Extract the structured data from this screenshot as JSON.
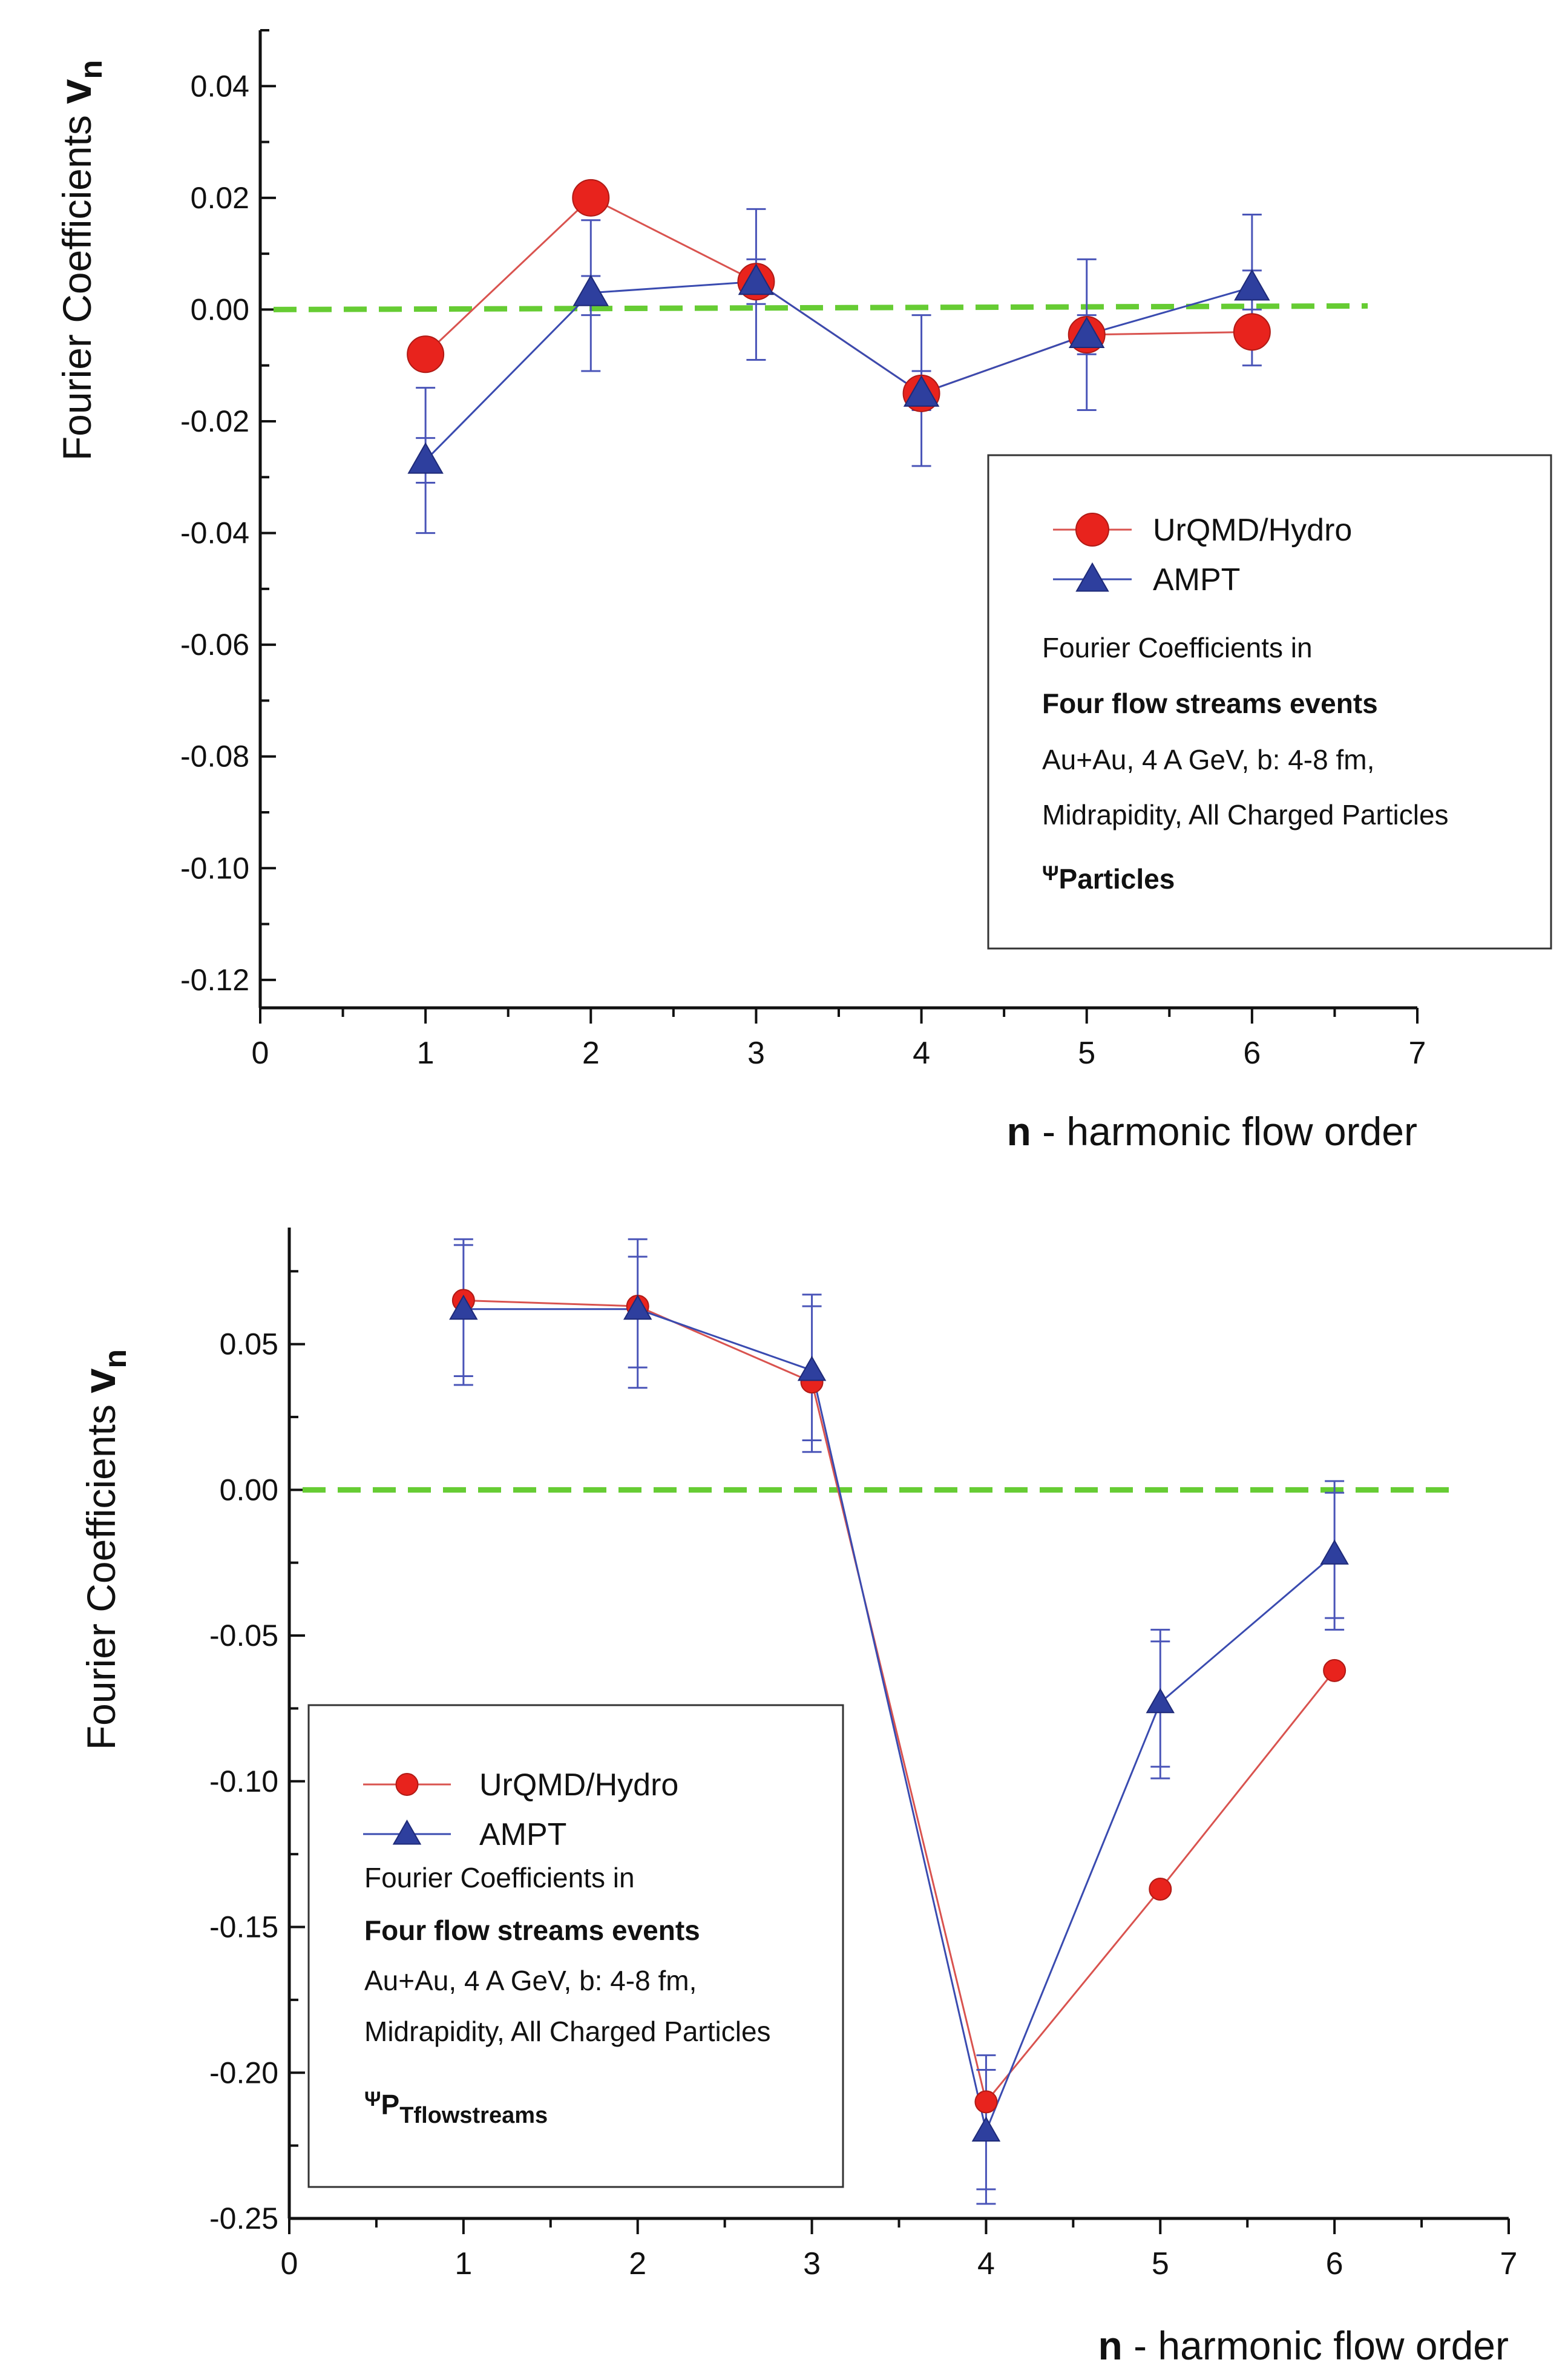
{
  "chart_data": [
    {
      "type": "line",
      "title": "",
      "xlabel_bold": "n",
      "xlabel_rest": " - harmonic flow order",
      "ylabel_main": "Fourier Coefficients ",
      "ylabel_var": "v",
      "ylabel_sub": "n",
      "xlim": [
        0,
        7
      ],
      "ylim": [
        -0.125,
        0.05
      ],
      "xticks": [
        0,
        1,
        2,
        3,
        4,
        5,
        6,
        7
      ],
      "xtick_labels": [
        "0",
        "1",
        "2",
        "3",
        "4",
        "5",
        "6",
        "7"
      ],
      "yticks": [
        -0.12,
        -0.1,
        -0.08,
        -0.06,
        -0.04,
        -0.02,
        0.0,
        0.02,
        0.04
      ],
      "ytick_labels": [
        "-0.12",
        "-0.10",
        "-0.08",
        "-0.06",
        "-0.04",
        "-0.02",
        "0.00",
        "0.02",
        "0.04"
      ],
      "reference_line": {
        "y": 0.0,
        "color": "#66cc33",
        "style": "dashed"
      },
      "series": [
        {
          "name": "UrQMD/Hydro",
          "marker": "circle",
          "color": "#e8231d",
          "line_color": "#d9534f",
          "x": [
            1,
            2,
            3,
            4,
            5,
            6
          ],
          "y": [
            -0.008,
            0.02,
            0.005,
            -0.015,
            -0.0045,
            -0.004
          ]
        },
        {
          "name": "AMPT",
          "marker": "triangle",
          "color": "#2e3f9e",
          "line_color": "#3a4bb0",
          "x": [
            1,
            2,
            3,
            4,
            5,
            6
          ],
          "y": [
            -0.027,
            0.003,
            0.005,
            -0.015,
            -0.0045,
            0.004
          ],
          "error_bars": [
            {
              "x": 1,
              "lo": -0.04,
              "hi": -0.014,
              "inner": [
                -0.031,
                -0.023
              ]
            },
            {
              "x": 2,
              "lo": -0.011,
              "hi": 0.016,
              "inner": [
                -0.001,
                0.006
              ]
            },
            {
              "x": 3,
              "lo": -0.009,
              "hi": 0.018,
              "inner": [
                0.001,
                0.009
              ]
            },
            {
              "x": 4,
              "lo": -0.028,
              "hi": -0.001,
              "inner": [
                -0.018,
                -0.011
              ]
            },
            {
              "x": 5,
              "lo": -0.018,
              "hi": 0.009,
              "inner": [
                -0.008,
                -0.001
              ]
            },
            {
              "x": 6,
              "lo": -0.01,
              "hi": 0.017,
              "inner": [
                0.0,
                0.007
              ]
            }
          ]
        }
      ],
      "legend": {
        "placement": "right",
        "entries": [
          "UrQMD/Hydro",
          "AMPT"
        ],
        "text_lines": [
          {
            "text": "Fourier Coefficients in",
            "bold": false
          },
          {
            "text": "Four flow streams events",
            "bold": true
          },
          {
            "text": "Au+Au, 4 A GeV, b: 4-8 fm,",
            "bold": false
          },
          {
            "text": "Midrapidity, All Charged Particles",
            "bold": false
          }
        ],
        "psi_symbol": "Ψ",
        "psi_sub": "Particles"
      }
    },
    {
      "type": "line",
      "title": "",
      "xlabel_bold": "n",
      "xlabel_rest": " - harmonic flow order",
      "ylabel_main": "Fourier Coefficients ",
      "ylabel_var": "v",
      "ylabel_sub": "n",
      "xlim": [
        0,
        7
      ],
      "ylim": [
        -0.25,
        0.09
      ],
      "xticks": [
        0,
        1,
        2,
        3,
        4,
        5,
        6,
        7
      ],
      "xtick_labels": [
        "0",
        "1",
        "2",
        "3",
        "4",
        "5",
        "6",
        "7"
      ],
      "yticks": [
        -0.25,
        -0.2,
        -0.15,
        -0.1,
        -0.05,
        0.0,
        0.05
      ],
      "ytick_labels": [
        "-0.25",
        "-0.20",
        "-0.15",
        "-0.10",
        "-0.05",
        "0.00",
        "0.05"
      ],
      "reference_line": {
        "y": 0.0,
        "color": "#66cc33",
        "style": "dashed"
      },
      "series": [
        {
          "name": "UrQMD/Hydro",
          "marker": "circle",
          "color": "#e8231d",
          "line_color": "#d9534f",
          "x": [
            1,
            2,
            3,
            4,
            5,
            6
          ],
          "y": [
            0.065,
            0.063,
            0.037,
            -0.21,
            -0.137,
            -0.062
          ]
        },
        {
          "name": "AMPT",
          "marker": "triangle",
          "color": "#2e3f9e",
          "line_color": "#3a4bb0",
          "x": [
            1,
            2,
            3,
            4,
            5,
            6
          ],
          "y": [
            0.062,
            0.062,
            0.041,
            -0.22,
            -0.073,
            -0.022
          ],
          "error_bars": [
            {
              "x": 1,
              "lo": 0.036,
              "hi": 0.086,
              "inner": [
                0.039,
                0.084
              ]
            },
            {
              "x": 2,
              "lo": 0.035,
              "hi": 0.086,
              "inner": [
                0.042,
                0.08
              ]
            },
            {
              "x": 3,
              "lo": 0.013,
              "hi": 0.067,
              "inner": [
                0.017,
                0.063
              ]
            },
            {
              "x": 4,
              "lo": -0.245,
              "hi": -0.194,
              "inner": [
                -0.24,
                -0.199
              ]
            },
            {
              "x": 5,
              "lo": -0.099,
              "hi": -0.048,
              "inner": [
                -0.095,
                -0.052
              ]
            },
            {
              "x": 6,
              "lo": -0.048,
              "hi": 0.003,
              "inner": [
                -0.044,
                -0.001
              ]
            }
          ]
        }
      ],
      "legend": {
        "placement": "bottom-left",
        "entries": [
          "UrQMD/Hydro",
          "AMPT"
        ],
        "text_lines": [
          {
            "text": "Fourier Coefficients in",
            "bold": false
          },
          {
            "text": "Four flow streams events",
            "bold": true
          },
          {
            "text": "Au+Au, 4 A GeV, b: 4-8 fm,",
            "bold": false
          },
          {
            "text": "Midrapidity, All Charged Particles",
            "bold": false
          }
        ],
        "psi_symbol": "Ψ",
        "psi_sub": "P",
        "psi_subsub": "Tflowstreams"
      }
    }
  ]
}
